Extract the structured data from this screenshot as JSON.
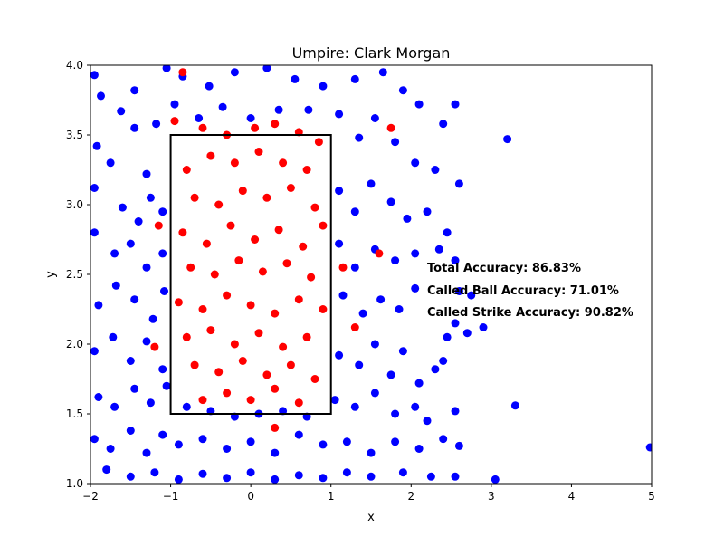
{
  "chart_data": {
    "type": "scatter",
    "title": "Umpire: Clark Morgan",
    "xlabel": "x",
    "ylabel": "y",
    "xlim": [
      -2,
      5
    ],
    "ylim": [
      1.0,
      4.0
    ],
    "xticks": [
      "−2",
      "−1",
      "0",
      "1",
      "2",
      "3",
      "4",
      "5"
    ],
    "yticks": [
      "1.0",
      "1.5",
      "2.0",
      "2.5",
      "3.0",
      "3.5",
      "4.0"
    ],
    "grid": false,
    "strike_zone": {
      "x": [
        -1,
        1
      ],
      "y": [
        1.5,
        3.5
      ]
    },
    "annotations": [
      "Total Accuracy: 86.83%",
      "Called Ball Accuracy: 71.01%",
      "Called Strike Accuracy: 90.82%"
    ],
    "series": [
      {
        "color": "#0000ff",
        "points": [
          [
            -1.95,
            3.93
          ],
          [
            -1.87,
            3.78
          ],
          [
            -1.62,
            3.67
          ],
          [
            -1.45,
            3.82
          ],
          [
            -1.05,
            3.98
          ],
          [
            -0.85,
            3.92
          ],
          [
            -0.52,
            3.85
          ],
          [
            -0.2,
            3.95
          ],
          [
            0.2,
            3.98
          ],
          [
            0.55,
            3.9
          ],
          [
            0.9,
            3.85
          ],
          [
            1.3,
            3.9
          ],
          [
            1.65,
            3.95
          ],
          [
            1.9,
            3.82
          ],
          [
            2.1,
            3.72
          ],
          [
            2.55,
            3.72
          ],
          [
            2.4,
            3.58
          ],
          [
            -1.92,
            3.42
          ],
          [
            -1.75,
            3.3
          ],
          [
            -1.45,
            3.55
          ],
          [
            -1.3,
            3.22
          ],
          [
            -1.18,
            3.58
          ],
          [
            -0.95,
            3.72
          ],
          [
            -0.65,
            3.62
          ],
          [
            -0.35,
            3.7
          ],
          [
            0.0,
            3.62
          ],
          [
            0.35,
            3.68
          ],
          [
            0.72,
            3.68
          ],
          [
            1.1,
            3.65
          ],
          [
            1.35,
            3.48
          ],
          [
            1.55,
            3.62
          ],
          [
            1.8,
            3.45
          ],
          [
            2.05,
            3.3
          ],
          [
            2.3,
            3.25
          ],
          [
            2.6,
            3.15
          ],
          [
            3.2,
            3.47
          ],
          [
            -1.95,
            3.12
          ],
          [
            -1.6,
            2.98
          ],
          [
            -1.4,
            2.88
          ],
          [
            -1.25,
            3.05
          ],
          [
            -1.1,
            2.95
          ],
          [
            1.1,
            3.1
          ],
          [
            1.3,
            2.95
          ],
          [
            1.5,
            3.15
          ],
          [
            1.75,
            3.02
          ],
          [
            1.95,
            2.9
          ],
          [
            2.2,
            2.95
          ],
          [
            2.45,
            2.8
          ],
          [
            -1.95,
            2.8
          ],
          [
            -1.7,
            2.65
          ],
          [
            -1.5,
            2.72
          ],
          [
            -1.3,
            2.55
          ],
          [
            -1.1,
            2.65
          ],
          [
            1.1,
            2.72
          ],
          [
            1.3,
            2.55
          ],
          [
            1.55,
            2.68
          ],
          [
            1.8,
            2.6
          ],
          [
            2.05,
            2.65
          ],
          [
            2.35,
            2.68
          ],
          [
            2.55,
            2.6
          ],
          [
            -1.9,
            2.28
          ],
          [
            -1.68,
            2.42
          ],
          [
            -1.45,
            2.32
          ],
          [
            -1.22,
            2.18
          ],
          [
            -1.08,
            2.38
          ],
          [
            1.15,
            2.35
          ],
          [
            1.4,
            2.22
          ],
          [
            1.62,
            2.32
          ],
          [
            1.85,
            2.25
          ],
          [
            2.05,
            2.4
          ],
          [
            2.6,
            2.38
          ],
          [
            2.75,
            2.35
          ],
          [
            2.9,
            2.12
          ],
          [
            2.45,
            2.05
          ],
          [
            2.55,
            2.15
          ],
          [
            2.7,
            2.08
          ],
          [
            -1.95,
            1.95
          ],
          [
            -1.72,
            2.05
          ],
          [
            -1.5,
            1.88
          ],
          [
            -1.3,
            2.02
          ],
          [
            -1.1,
            1.82
          ],
          [
            1.1,
            1.92
          ],
          [
            1.35,
            1.85
          ],
          [
            1.55,
            2.0
          ],
          [
            1.75,
            1.78
          ],
          [
            1.9,
            1.95
          ],
          [
            2.1,
            1.72
          ],
          [
            2.3,
            1.82
          ],
          [
            2.4,
            1.88
          ],
          [
            -1.9,
            1.62
          ],
          [
            -1.7,
            1.55
          ],
          [
            -1.45,
            1.68
          ],
          [
            -1.25,
            1.58
          ],
          [
            -1.05,
            1.7
          ],
          [
            -0.8,
            1.55
          ],
          [
            -0.5,
            1.52
          ],
          [
            -0.2,
            1.48
          ],
          [
            0.1,
            1.5
          ],
          [
            0.4,
            1.52
          ],
          [
            0.7,
            1.48
          ],
          [
            1.05,
            1.6
          ],
          [
            1.3,
            1.55
          ],
          [
            1.55,
            1.65
          ],
          [
            1.8,
            1.5
          ],
          [
            2.05,
            1.55
          ],
          [
            2.2,
            1.45
          ],
          [
            2.55,
            1.52
          ],
          [
            3.3,
            1.56
          ],
          [
            -1.95,
            1.32
          ],
          [
            -1.75,
            1.25
          ],
          [
            -1.5,
            1.38
          ],
          [
            -1.3,
            1.22
          ],
          [
            -1.1,
            1.35
          ],
          [
            -0.9,
            1.28
          ],
          [
            -0.6,
            1.32
          ],
          [
            -0.3,
            1.25
          ],
          [
            0.0,
            1.3
          ],
          [
            0.3,
            1.22
          ],
          [
            0.6,
            1.35
          ],
          [
            0.9,
            1.28
          ],
          [
            1.2,
            1.3
          ],
          [
            1.5,
            1.22
          ],
          [
            1.8,
            1.3
          ],
          [
            2.1,
            1.25
          ],
          [
            2.4,
            1.32
          ],
          [
            2.6,
            1.27
          ],
          [
            4.98,
            1.26
          ],
          [
            -1.8,
            1.1
          ],
          [
            -1.5,
            1.05
          ],
          [
            -1.2,
            1.08
          ],
          [
            -0.9,
            1.03
          ],
          [
            -0.6,
            1.07
          ],
          [
            -0.3,
            1.04
          ],
          [
            0.0,
            1.08
          ],
          [
            0.3,
            1.03
          ],
          [
            0.6,
            1.06
          ],
          [
            0.9,
            1.04
          ],
          [
            1.2,
            1.08
          ],
          [
            1.5,
            1.05
          ],
          [
            1.9,
            1.08
          ],
          [
            2.25,
            1.05
          ],
          [
            2.55,
            1.05
          ],
          [
            3.05,
            1.03
          ]
        ]
      },
      {
        "color": "#ff0000",
        "points": [
          [
            -0.85,
            3.95
          ],
          [
            -0.95,
            3.6
          ],
          [
            -0.6,
            3.55
          ],
          [
            -0.3,
            3.5
          ],
          [
            0.05,
            3.55
          ],
          [
            0.3,
            3.58
          ],
          [
            0.6,
            3.52
          ],
          [
            0.85,
            3.45
          ],
          [
            1.75,
            3.55
          ],
          [
            -0.8,
            3.25
          ],
          [
            -0.5,
            3.35
          ],
          [
            -0.2,
            3.3
          ],
          [
            0.1,
            3.38
          ],
          [
            0.4,
            3.3
          ],
          [
            0.7,
            3.25
          ],
          [
            -0.7,
            3.05
          ],
          [
            -0.4,
            3.0
          ],
          [
            -0.1,
            3.1
          ],
          [
            0.2,
            3.05
          ],
          [
            0.5,
            3.12
          ],
          [
            0.8,
            2.98
          ],
          [
            -0.85,
            2.8
          ],
          [
            -0.55,
            2.72
          ],
          [
            -0.25,
            2.85
          ],
          [
            0.05,
            2.75
          ],
          [
            0.35,
            2.82
          ],
          [
            0.65,
            2.7
          ],
          [
            0.9,
            2.85
          ],
          [
            -0.75,
            2.55
          ],
          [
            -0.45,
            2.5
          ],
          [
            -0.15,
            2.6
          ],
          [
            0.15,
            2.52
          ],
          [
            0.45,
            2.58
          ],
          [
            0.75,
            2.48
          ],
          [
            -0.9,
            2.3
          ],
          [
            -0.6,
            2.25
          ],
          [
            -0.3,
            2.35
          ],
          [
            0.0,
            2.28
          ],
          [
            0.3,
            2.22
          ],
          [
            0.6,
            2.32
          ],
          [
            0.9,
            2.25
          ],
          [
            -0.8,
            2.05
          ],
          [
            -0.5,
            2.1
          ],
          [
            -0.2,
            2.0
          ],
          [
            0.1,
            2.08
          ],
          [
            0.4,
            1.98
          ],
          [
            0.7,
            2.05
          ],
          [
            -0.7,
            1.85
          ],
          [
            -0.4,
            1.8
          ],
          [
            -0.1,
            1.88
          ],
          [
            0.2,
            1.78
          ],
          [
            0.5,
            1.85
          ],
          [
            0.8,
            1.75
          ],
          [
            -0.6,
            1.6
          ],
          [
            -0.3,
            1.65
          ],
          [
            0.0,
            1.6
          ],
          [
            0.3,
            1.68
          ],
          [
            0.6,
            1.58
          ],
          [
            -1.2,
            1.98
          ],
          [
            1.15,
            2.55
          ],
          [
            1.3,
            2.12
          ],
          [
            1.6,
            2.65
          ],
          [
            -1.15,
            2.85
          ],
          [
            0.3,
            1.4
          ]
        ]
      }
    ]
  }
}
